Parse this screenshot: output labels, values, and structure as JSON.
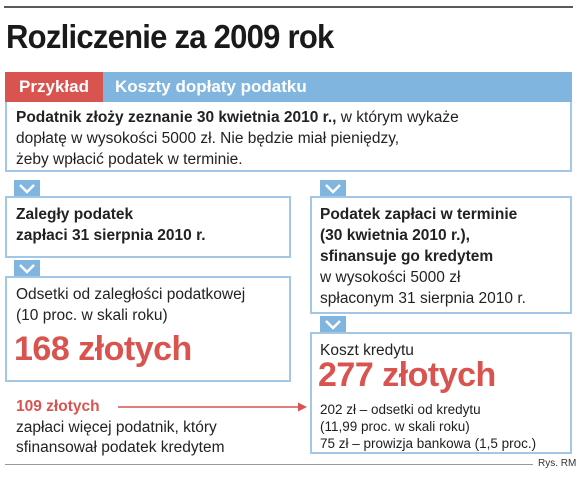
{
  "title": "Rozliczenie za 2009 rok",
  "tag": {
    "example": "Przykład",
    "heading": "Koszty dopłaty podatku"
  },
  "intro": {
    "bold": "Podatnik złoży zeznanie 30 kwietnia 2010 r.,",
    "rest1": " w którym wykaże",
    "line2": "dopłatę w wysokości 5000 zł. Nie będzie miał pieniędzy,",
    "line3": "żeby wpłacić podatek w terminie."
  },
  "left": {
    "box1": {
      "line1": "Zaległy podatek",
      "line2": "zapłaci 31 sierpnia 2010 r."
    },
    "box2": {
      "line1": "Odsetki od zaległości podatkowej",
      "line2": "(10 proc. w skali roku)",
      "amount": "168 złotych"
    }
  },
  "right": {
    "box1": {
      "line1": "Podatek zapłaci w terminie",
      "line2": "(30 kwietnia 2010 r.),",
      "line3": "sfinansuje go kredytem",
      "line4": "w wysokości 5000 zł",
      "line5": "spłaconym 31 sierpnia 2010 r."
    },
    "box2": {
      "label": "Koszt kredytu",
      "amount": "277 złotych",
      "line1": "202 zł – odsetki od kredytu",
      "line2": "(11,99 proc. w skali roku)",
      "line3": "75 zł – prowizja bankowa (1,5 proc.)"
    }
  },
  "difference": {
    "amount": "109 złotych",
    "line1": "zapłaci więcej podatnik, który",
    "line2": "sfinansował podatek kredytem"
  },
  "credit": "Rys. RM",
  "colors": {
    "red": "#d9534f",
    "blue": "#7fb5df",
    "border": "#a3c7e6"
  }
}
